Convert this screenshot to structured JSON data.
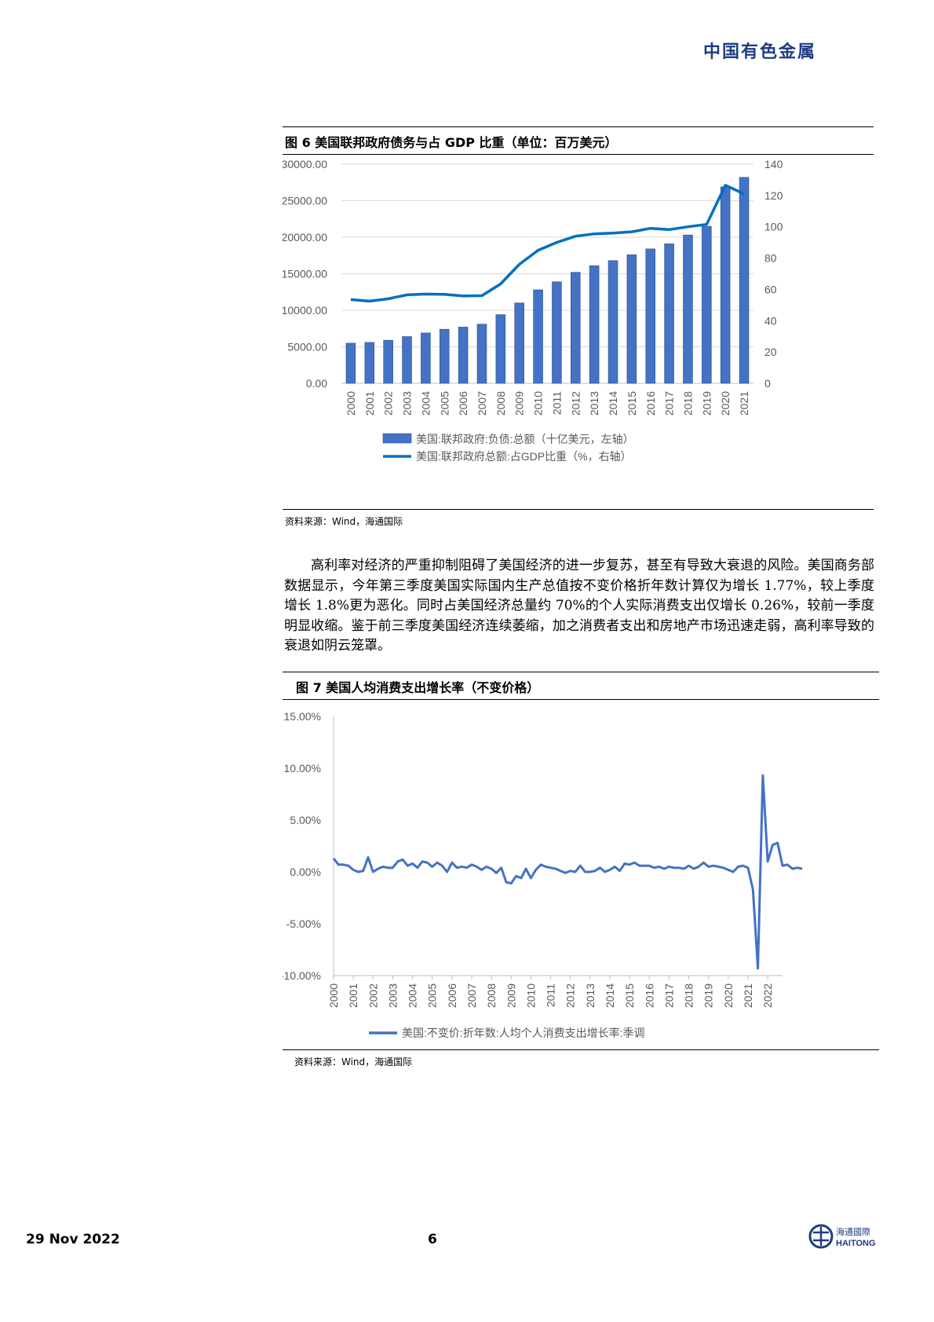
{
  "header": {
    "brand": "中国有色金属"
  },
  "figure6": {
    "title": "图 6 美国联邦政府债务与占 GDP 比重（单位：百万美元）",
    "source": "资料来源：Wind，海通国际"
  },
  "figure7": {
    "title": "图 7 美国人均消费支出增长率（不变价格）",
    "source": "资料来源：Wind，海通国际"
  },
  "body": {
    "paragraph": "高利率对经济的严重抑制阻碍了美国经济的进一步复苏，甚至有导致大衰退的风险。美国商务部数据显示，今年第三季度美国实际国内生产总值按不变价格折年数计算仅为增长 1.77%，较上季度增长 1.8%更为恶化。同时占美国经济总量约 70%的个人实际消费支出仅增长 0.26%，较前一季度明显收缩。鉴于前三季度美国经济连续萎缩，加之消费者支出和房地产市场迅速走弱，高利率导致的衰退如阴云笼罩。"
  },
  "footer": {
    "date": "29 Nov 2022",
    "page": "6",
    "logo_cn": "海通國際",
    "logo_en": "HAITONG"
  },
  "chart_data": [
    {
      "type": "bar",
      "categories": [
        "2000",
        "2001",
        "2002",
        "2003",
        "2004",
        "2005",
        "2006",
        "2007",
        "2008",
        "2009",
        "2010",
        "2011",
        "2012",
        "2013",
        "2014",
        "2015",
        "2016",
        "2017",
        "2018",
        "2019",
        "2020",
        "2021"
      ],
      "series": [
        {
          "name": "美国:联邦政府:负债:总额（十亿美元，左轴）",
          "type": "bar",
          "axis": "left",
          "values": [
            5500,
            5600,
            5900,
            6400,
            6900,
            7400,
            7700,
            8100,
            9400,
            11000,
            12800,
            13900,
            15200,
            16100,
            16800,
            17600,
            18400,
            19100,
            20300,
            21500,
            26900,
            28200
          ]
        },
        {
          "name": "美国:联邦政府总额:占GDP比重（%，右轴）",
          "type": "line",
          "axis": "right",
          "values": [
            53.5,
            52.5,
            54,
            56.5,
            57,
            56.8,
            55.8,
            56,
            63.5,
            76,
            85,
            90,
            94,
            95.5,
            96,
            96.8,
            99,
            98.2,
            100,
            101.5,
            126.5,
            121
          ]
        }
      ],
      "yticks_left": [
        "0.00",
        "5000.00",
        "10000.00",
        "15000.00",
        "20000.00",
        "25000.00",
        "30000.00"
      ],
      "yticks_right": [
        "0",
        "20",
        "40",
        "60",
        "80",
        "100",
        "120",
        "140"
      ],
      "ylim_left": [
        0,
        30000
      ],
      "ylim_right": [
        0,
        140
      ],
      "colors": {
        "bar": "#4472c4",
        "line": "#0070c0"
      },
      "legend": "bottom",
      "grid": true
    },
    {
      "type": "line",
      "x_start": 2000,
      "x_end": 2022.75,
      "xticks": [
        "2000",
        "2001",
        "2002",
        "2003",
        "2004",
        "2005",
        "2006",
        "2007",
        "2008",
        "2009",
        "2010",
        "2011",
        "2012",
        "2013",
        "2014",
        "2015",
        "2016",
        "2017",
        "2018",
        "2019",
        "2020",
        "2021",
        "2022"
      ],
      "series": [
        {
          "name": "美国:不变价:折年数:人均个人消费支出增长率:季调",
          "values": [
            1.3,
            0.7,
            0.7,
            0.6,
            0.2,
            0.0,
            0.1,
            1.4,
            0.0,
            0.3,
            0.5,
            0.4,
            0.4,
            1.0,
            1.2,
            0.6,
            0.8,
            0.4,
            1.0,
            0.9,
            0.5,
            0.9,
            0.6,
            0.0,
            0.9,
            0.4,
            0.5,
            0.4,
            0.7,
            0.5,
            0.2,
            0.5,
            0.3,
            -0.1,
            0.4,
            -1.0,
            -1.1,
            -0.4,
            -0.6,
            0.3,
            -0.6,
            0.2,
            0.7,
            0.5,
            0.4,
            0.3,
            0.1,
            -0.1,
            0.1,
            0.0,
            0.6,
            0.0,
            0.0,
            0.1,
            0.4,
            0.0,
            0.2,
            0.5,
            0.1,
            0.8,
            0.7,
            0.9,
            0.6,
            0.6,
            0.6,
            0.4,
            0.5,
            0.3,
            0.5,
            0.4,
            0.4,
            0.3,
            0.6,
            0.3,
            0.5,
            0.9,
            0.5,
            0.6,
            0.5,
            0.4,
            0.2,
            0.0,
            0.5,
            0.6,
            0.4,
            -1.7,
            -9.3,
            9.3,
            1.0,
            2.6,
            2.8,
            0.6,
            0.7,
            0.3,
            0.4,
            0.3
          ]
        }
      ],
      "yticks": [
        "15.00%",
        "10.00%",
        "5.00%",
        "0.00%",
        "-5.00%",
        "-10.00%"
      ],
      "ylim": [
        -10,
        15
      ],
      "colors": {
        "line": "#4472c4"
      },
      "legend": "bottom",
      "grid": false
    }
  ]
}
